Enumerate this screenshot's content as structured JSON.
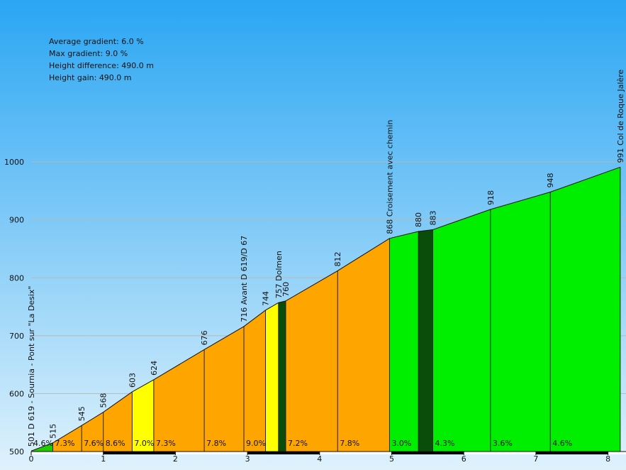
{
  "stats": {
    "average_gradient": "Average gradient: 6.0 %",
    "max_gradient": "Max gradient: 9.0 %",
    "height_difference": "Height difference: 490.0 m",
    "height_gain": "Height gain: 490.0 m"
  },
  "chart_data": {
    "type": "area",
    "title": "",
    "xlabel": "",
    "ylabel": "",
    "xlim": [
      0,
      8.1
    ],
    "ylim": [
      500,
      1000
    ],
    "x_ticks": [
      0,
      1,
      2,
      3,
      4,
      5,
      6,
      7,
      8
    ],
    "y_ticks": [
      500,
      600,
      700,
      800,
      900,
      1000
    ],
    "grid": true,
    "profile": [
      {
        "x": 0.0,
        "y": 501
      },
      {
        "x": 0.3,
        "y": 515
      },
      {
        "x": 0.7,
        "y": 545
      },
      {
        "x": 1.0,
        "y": 568
      },
      {
        "x": 1.4,
        "y": 603
      },
      {
        "x": 1.7,
        "y": 624
      },
      {
        "x": 2.4,
        "y": 676
      },
      {
        "x": 2.95,
        "y": 716
      },
      {
        "x": 3.25,
        "y": 744
      },
      {
        "x": 3.43,
        "y": 757
      },
      {
        "x": 3.53,
        "y": 760
      },
      {
        "x": 4.25,
        "y": 812
      },
      {
        "x": 4.97,
        "y": 868
      },
      {
        "x": 5.37,
        "y": 880
      },
      {
        "x": 5.57,
        "y": 883
      },
      {
        "x": 6.37,
        "y": 918
      },
      {
        "x": 7.2,
        "y": 948
      },
      {
        "x": 8.17,
        "y": 991
      }
    ],
    "point_labels": [
      "501 D 619 - Sournia - Pont sur \"La Desix\"",
      "515",
      "545",
      "568",
      "603",
      "624",
      "676",
      "716 Avant D 619/D 67",
      "744",
      "757 Dolmen",
      "760",
      "812",
      "868 Croisement avec chemin",
      "880",
      "883",
      "918",
      "948",
      "991 Col de Roque Jalère"
    ],
    "segments": [
      {
        "gradient": "4.6%",
        "color": "#22cc00"
      },
      {
        "gradient": "7.3%",
        "color": "#ffa500"
      },
      {
        "gradient": "7.6%",
        "color": "#ffa500"
      },
      {
        "gradient": "8.6%",
        "color": "#ffa500"
      },
      {
        "gradient": "7.0%",
        "color": "#ffff00"
      },
      {
        "gradient": "7.3%",
        "color": "#ffa500"
      },
      {
        "gradient": "7.8%",
        "color": "#ffa500"
      },
      {
        "gradient": "9.0%",
        "color": "#ffa500"
      },
      {
        "gradient": "",
        "color": "#ffff00"
      },
      {
        "gradient": "",
        "color": "#0a4d0a"
      },
      {
        "gradient": "7.2%",
        "color": "#ffa500"
      },
      {
        "gradient": "7.8%",
        "color": "#ffa500"
      },
      {
        "gradient": "3.0%",
        "color": "#00ee00"
      },
      {
        "gradient": "",
        "color": "#0a4d0a"
      },
      {
        "gradient": "4.3%",
        "color": "#00ee00"
      },
      {
        "gradient": "3.6%",
        "color": "#00ee00"
      },
      {
        "gradient": "4.6%",
        "color": "#00ee00"
      }
    ],
    "sky_top_color": "#2aa6f3",
    "sky_bottom_color": "#dff2fc"
  }
}
